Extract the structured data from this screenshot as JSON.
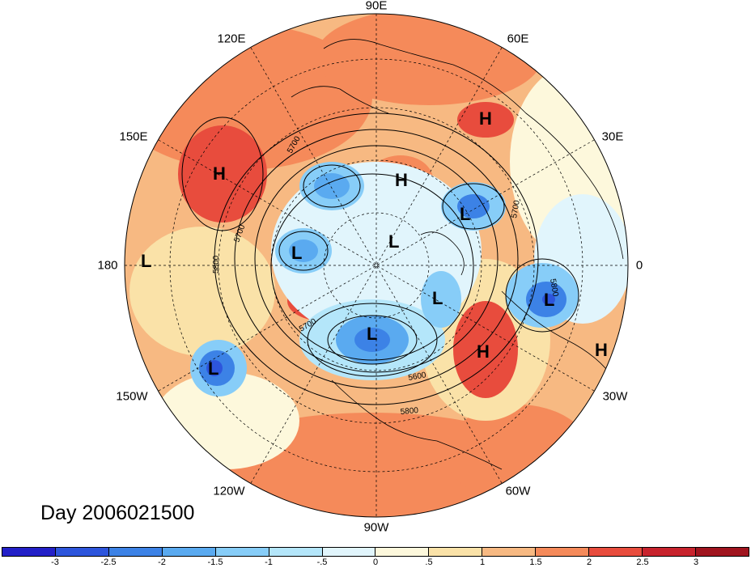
{
  "day_label": "Day 2006021500",
  "lon_labels": [
    "90E",
    "120E",
    "60E",
    "150E",
    "30E",
    "180",
    "0",
    "150W",
    "30W",
    "120W",
    "60W",
    "90W"
  ],
  "markers": [
    {
      "type": "H",
      "lon_label": "60E"
    },
    {
      "type": "H",
      "lon_label": "150E"
    },
    {
      "type": "H",
      "lon_label": "90E"
    },
    {
      "type": "L",
      "lon_label": "30E"
    },
    {
      "type": "L",
      "lon_label": "180"
    },
    {
      "type": "L",
      "lon_label": "120E"
    },
    {
      "type": "L",
      "lon_label": "90E"
    },
    {
      "type": "L",
      "lon_label": "60W"
    },
    {
      "type": "L",
      "lon_label": "0"
    },
    {
      "type": "L",
      "lon_label": "90W"
    },
    {
      "type": "H",
      "lon_label": "60W"
    },
    {
      "type": "H",
      "lon_label": "30W"
    },
    {
      "type": "L",
      "lon_label": "150W"
    }
  ],
  "contour_labels": [
    "5700",
    "5700",
    "5700",
    "5800",
    "5700",
    "5800",
    "5600",
    "5800"
  ],
  "colorbar": {
    "ticks": [
      "-3",
      "-2.5",
      "-2",
      "-1.5",
      "-1",
      "-.5",
      "0",
      ".5",
      "1",
      "1.5",
      "2",
      "2.5",
      "3"
    ],
    "colors": [
      "#2320c8",
      "#2d55dc",
      "#3c82e6",
      "#5aaaf0",
      "#87cdf8",
      "#b4e6fa",
      "#e1f5fc",
      "#fdf8dc",
      "#fae2a8",
      "#f7b982",
      "#f58a5a",
      "#e84c3d",
      "#c8232d",
      "#a0141e"
    ]
  },
  "icon_names": {
    "high": "high-pressure-icon",
    "low": "low-pressure-icon"
  }
}
